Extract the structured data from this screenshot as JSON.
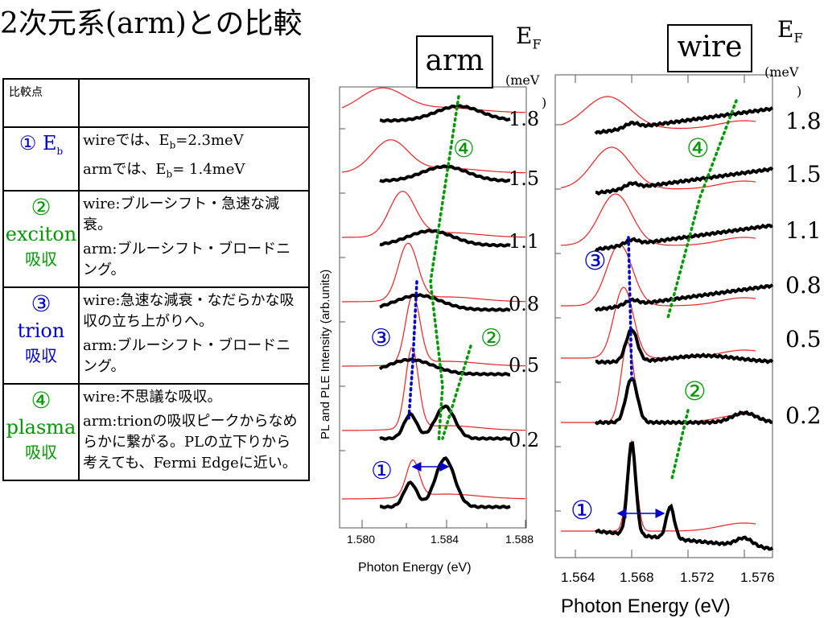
{
  "title": "2次元系(arm)との比較",
  "table": {
    "header": "比較点",
    "rows": [
      {
        "num": "①",
        "name": "E",
        "name_sub": "b",
        "absorption": "",
        "lines": [
          {
            "pre": "wireでは、E",
            "sub": "b",
            "post": "=2.3meV"
          },
          {
            "pre": "armでは、E",
            "sub": "b",
            "post": "= 1.4meV"
          }
        ]
      },
      {
        "num": "②",
        "name": "exciton",
        "absorption": "吸収",
        "paras": [
          "wire:ブルーシフト・急速な減衰。",
          "arm:ブルーシフト・ブロードニング。"
        ]
      },
      {
        "num": "③",
        "name": "trion",
        "absorption": "吸収",
        "paras": [
          "wire:急速な減衰・なだらかな吸収の立ち上がりへ。",
          "arm:ブルーシフト・ブロードニング。"
        ]
      },
      {
        "num": "④",
        "name": "plasma",
        "absorption": "吸収",
        "paras": [
          "wire:不思議な吸収。",
          "arm:trionの吸収ピークからなめらかに繋がる。PLの立下りから考えても、Fermi Edgeに近い。"
        ]
      }
    ]
  },
  "arm_panel": {
    "label": "arm",
    "ef": "E",
    "ef_sub": "F",
    "unit": "(meV",
    "unit_close": ")",
    "ylabel": "PL and PLE Intensity (arb.units)",
    "xlabel": "Photon Energy (eV)",
    "xticks": [
      "1.580",
      "1.584",
      "1.588"
    ],
    "ef_values": [
      "1.8",
      "1.5",
      "1.1",
      "0.8",
      "0.5",
      "0.2"
    ],
    "markers": [
      "①",
      "②",
      "③",
      "④"
    ]
  },
  "wire_panel": {
    "label": "wire",
    "ef": "E",
    "ef_sub": "F",
    "unit": "(meV",
    "unit_close": ")",
    "xlabel": "Photon Energy (eV)",
    "xticks": [
      "1.564",
      "1.568",
      "1.572",
      "1.576"
    ],
    "ef_values": [
      "1.8",
      "1.5",
      "1.1",
      "0.8",
      "0.5",
      "0.2"
    ],
    "markers": [
      "①",
      "②",
      "③",
      "④"
    ]
  },
  "colors": {
    "blue": "#0000cc",
    "green": "#009900",
    "pl_red": "#ee2222",
    "ple_black": "#000000"
  }
}
